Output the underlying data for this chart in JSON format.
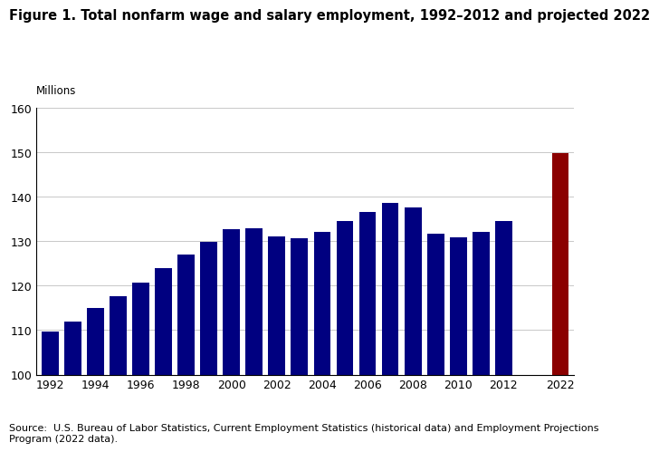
{
  "title": "Figure 1. Total nonfarm wage and salary employment, 1992–2012 and projected 2022",
  "millions_label": "Millions",
  "source": "Source:  U.S. Bureau of Labor Statistics, Current Employment Statistics (historical data) and Employment Projections\nProgram (2022 data).",
  "years": [
    1992,
    1993,
    1994,
    1995,
    1996,
    1997,
    1998,
    1999,
    2000,
    2001,
    2002,
    2003,
    2004,
    2005,
    2006,
    2007,
    2008,
    2009,
    2010,
    2011,
    2012,
    2022
  ],
  "values": [
    109.7,
    111.9,
    115.0,
    117.6,
    120.7,
    123.9,
    127.0,
    129.8,
    132.7,
    132.8,
    131.1,
    130.7,
    132.0,
    134.5,
    136.6,
    138.6,
    137.6,
    131.7,
    130.8,
    132.0,
    134.5,
    149.7
  ],
  "bar_colors": [
    "#000080",
    "#000080",
    "#000080",
    "#000080",
    "#000080",
    "#000080",
    "#000080",
    "#000080",
    "#000080",
    "#000080",
    "#000080",
    "#000080",
    "#000080",
    "#000080",
    "#000080",
    "#000080",
    "#000080",
    "#000080",
    "#000080",
    "#000080",
    "#000080",
    "#8B0000"
  ],
  "xlabels": [
    "1992",
    "1994",
    "1996",
    "1998",
    "2000",
    "2002",
    "2004",
    "2006",
    "2008",
    "2010",
    "2012",
    "2022"
  ],
  "ylim": [
    100,
    160
  ],
  "yticks": [
    100,
    110,
    120,
    130,
    140,
    150,
    160
  ],
  "background_color": "#ffffff",
  "grid_color": "#c8c8c8",
  "title_fontsize": 10.5,
  "label_fontsize": 8.5,
  "tick_fontsize": 9,
  "source_fontsize": 8
}
